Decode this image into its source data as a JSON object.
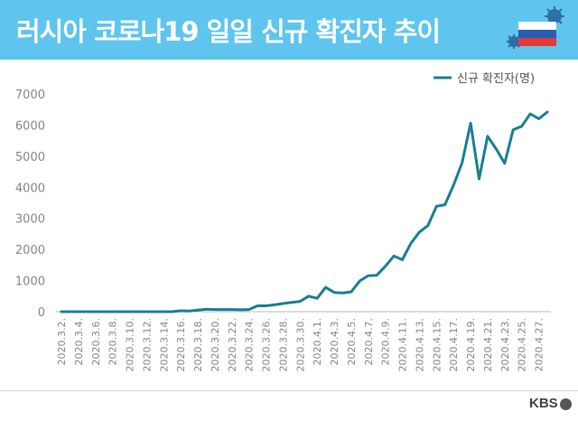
{
  "header": {
    "title": "러시아 코로나19 일일 신규 확진자 추이",
    "bg_color": "#5fc5ee",
    "illustration": "russia-flag-virus-icon"
  },
  "footer": {
    "logo_text": "KBS"
  },
  "chart_data": {
    "type": "line",
    "title": "러시아 코로나19 일일 신규 확진자 추이",
    "xlabel": "",
    "ylabel": "",
    "ylim": [
      0,
      7000
    ],
    "yticks": [
      0,
      1000,
      2000,
      3000,
      4000,
      5000,
      6000,
      7000
    ],
    "ytick_labels": [
      "0",
      "1000",
      "2000",
      "3000",
      "4000",
      "5000",
      "6000",
      "7000"
    ],
    "grid": false,
    "legend_position": "top-right",
    "line_color": "#1a7f96",
    "x": [
      "2020.3.2.",
      "2020.3.3.",
      "2020.3.4.",
      "2020.3.5.",
      "2020.3.6.",
      "2020.3.7.",
      "2020.3.8.",
      "2020.3.9.",
      "2020.3.10.",
      "2020.3.11.",
      "2020.3.12.",
      "2020.3.13.",
      "2020.3.14.",
      "2020.3.15.",
      "2020.3.16.",
      "2020.3.17.",
      "2020.3.18.",
      "2020.3.19.",
      "2020.3.20.",
      "2020.3.21.",
      "2020.3.22.",
      "2020.3.23.",
      "2020.3.24.",
      "2020.3.25.",
      "2020.3.26.",
      "2020.3.27.",
      "2020.3.28.",
      "2020.3.29.",
      "2020.3.30.",
      "2020.3.31.",
      "2020.4.1.",
      "2020.4.2.",
      "2020.4.3.",
      "2020.4.4.",
      "2020.4.5.",
      "2020.4.6.",
      "2020.4.7.",
      "2020.4.8.",
      "2020.4.9.",
      "2020.4.10.",
      "2020.4.11.",
      "2020.4.12.",
      "2020.4.13.",
      "2020.4.14.",
      "2020.4.15.",
      "2020.4.16.",
      "2020.4.17.",
      "2020.4.18.",
      "2020.4.19.",
      "2020.4.20.",
      "2020.4.21.",
      "2020.4.22.",
      "2020.4.23.",
      "2020.4.24.",
      "2020.4.25.",
      "2020.4.26.",
      "2020.4.27.",
      "2020.4.28."
    ],
    "x_tick_labels": [
      "2020.3.2.",
      "2020.3.4.",
      "2020.3.6.",
      "2020.3.8.",
      "2020.3.10.",
      "2020.3.12.",
      "2020.3.14.",
      "2020.3.16.",
      "2020.3.18.",
      "2020.3.20.",
      "2020.3.22.",
      "2020.3.24.",
      "2020.3.26.",
      "2020.3.28.",
      "2020.3.30.",
      "2020.4.1.",
      "2020.4.3.",
      "2020.4.5.",
      "2020.4.7.",
      "2020.4.9.",
      "2020.4.11.",
      "2020.4.13.",
      "2020.4.15.",
      "2020.4.17.",
      "2020.4.19.",
      "2020.4.21.",
      "2020.4.23.",
      "2020.4.25.",
      "2020.4.27."
    ],
    "series": [
      {
        "name": "신규 확진자(명)",
        "values": [
          0,
          0,
          0,
          0,
          0,
          0,
          0,
          0,
          0,
          0,
          0,
          0,
          0,
          0,
          30,
          20,
          50,
          80,
          70,
          70,
          70,
          60,
          70,
          190,
          190,
          220,
          260,
          300,
          330,
          500,
          430,
          780,
          620,
          600,
          640,
          990,
          1160,
          1170,
          1460,
          1790,
          1670,
          2200,
          2560,
          2770,
          3390,
          3440,
          4070,
          4780,
          6060,
          4270,
          5640,
          5230,
          4770,
          5850,
          5960,
          6360,
          6200,
          6420
        ]
      }
    ]
  }
}
